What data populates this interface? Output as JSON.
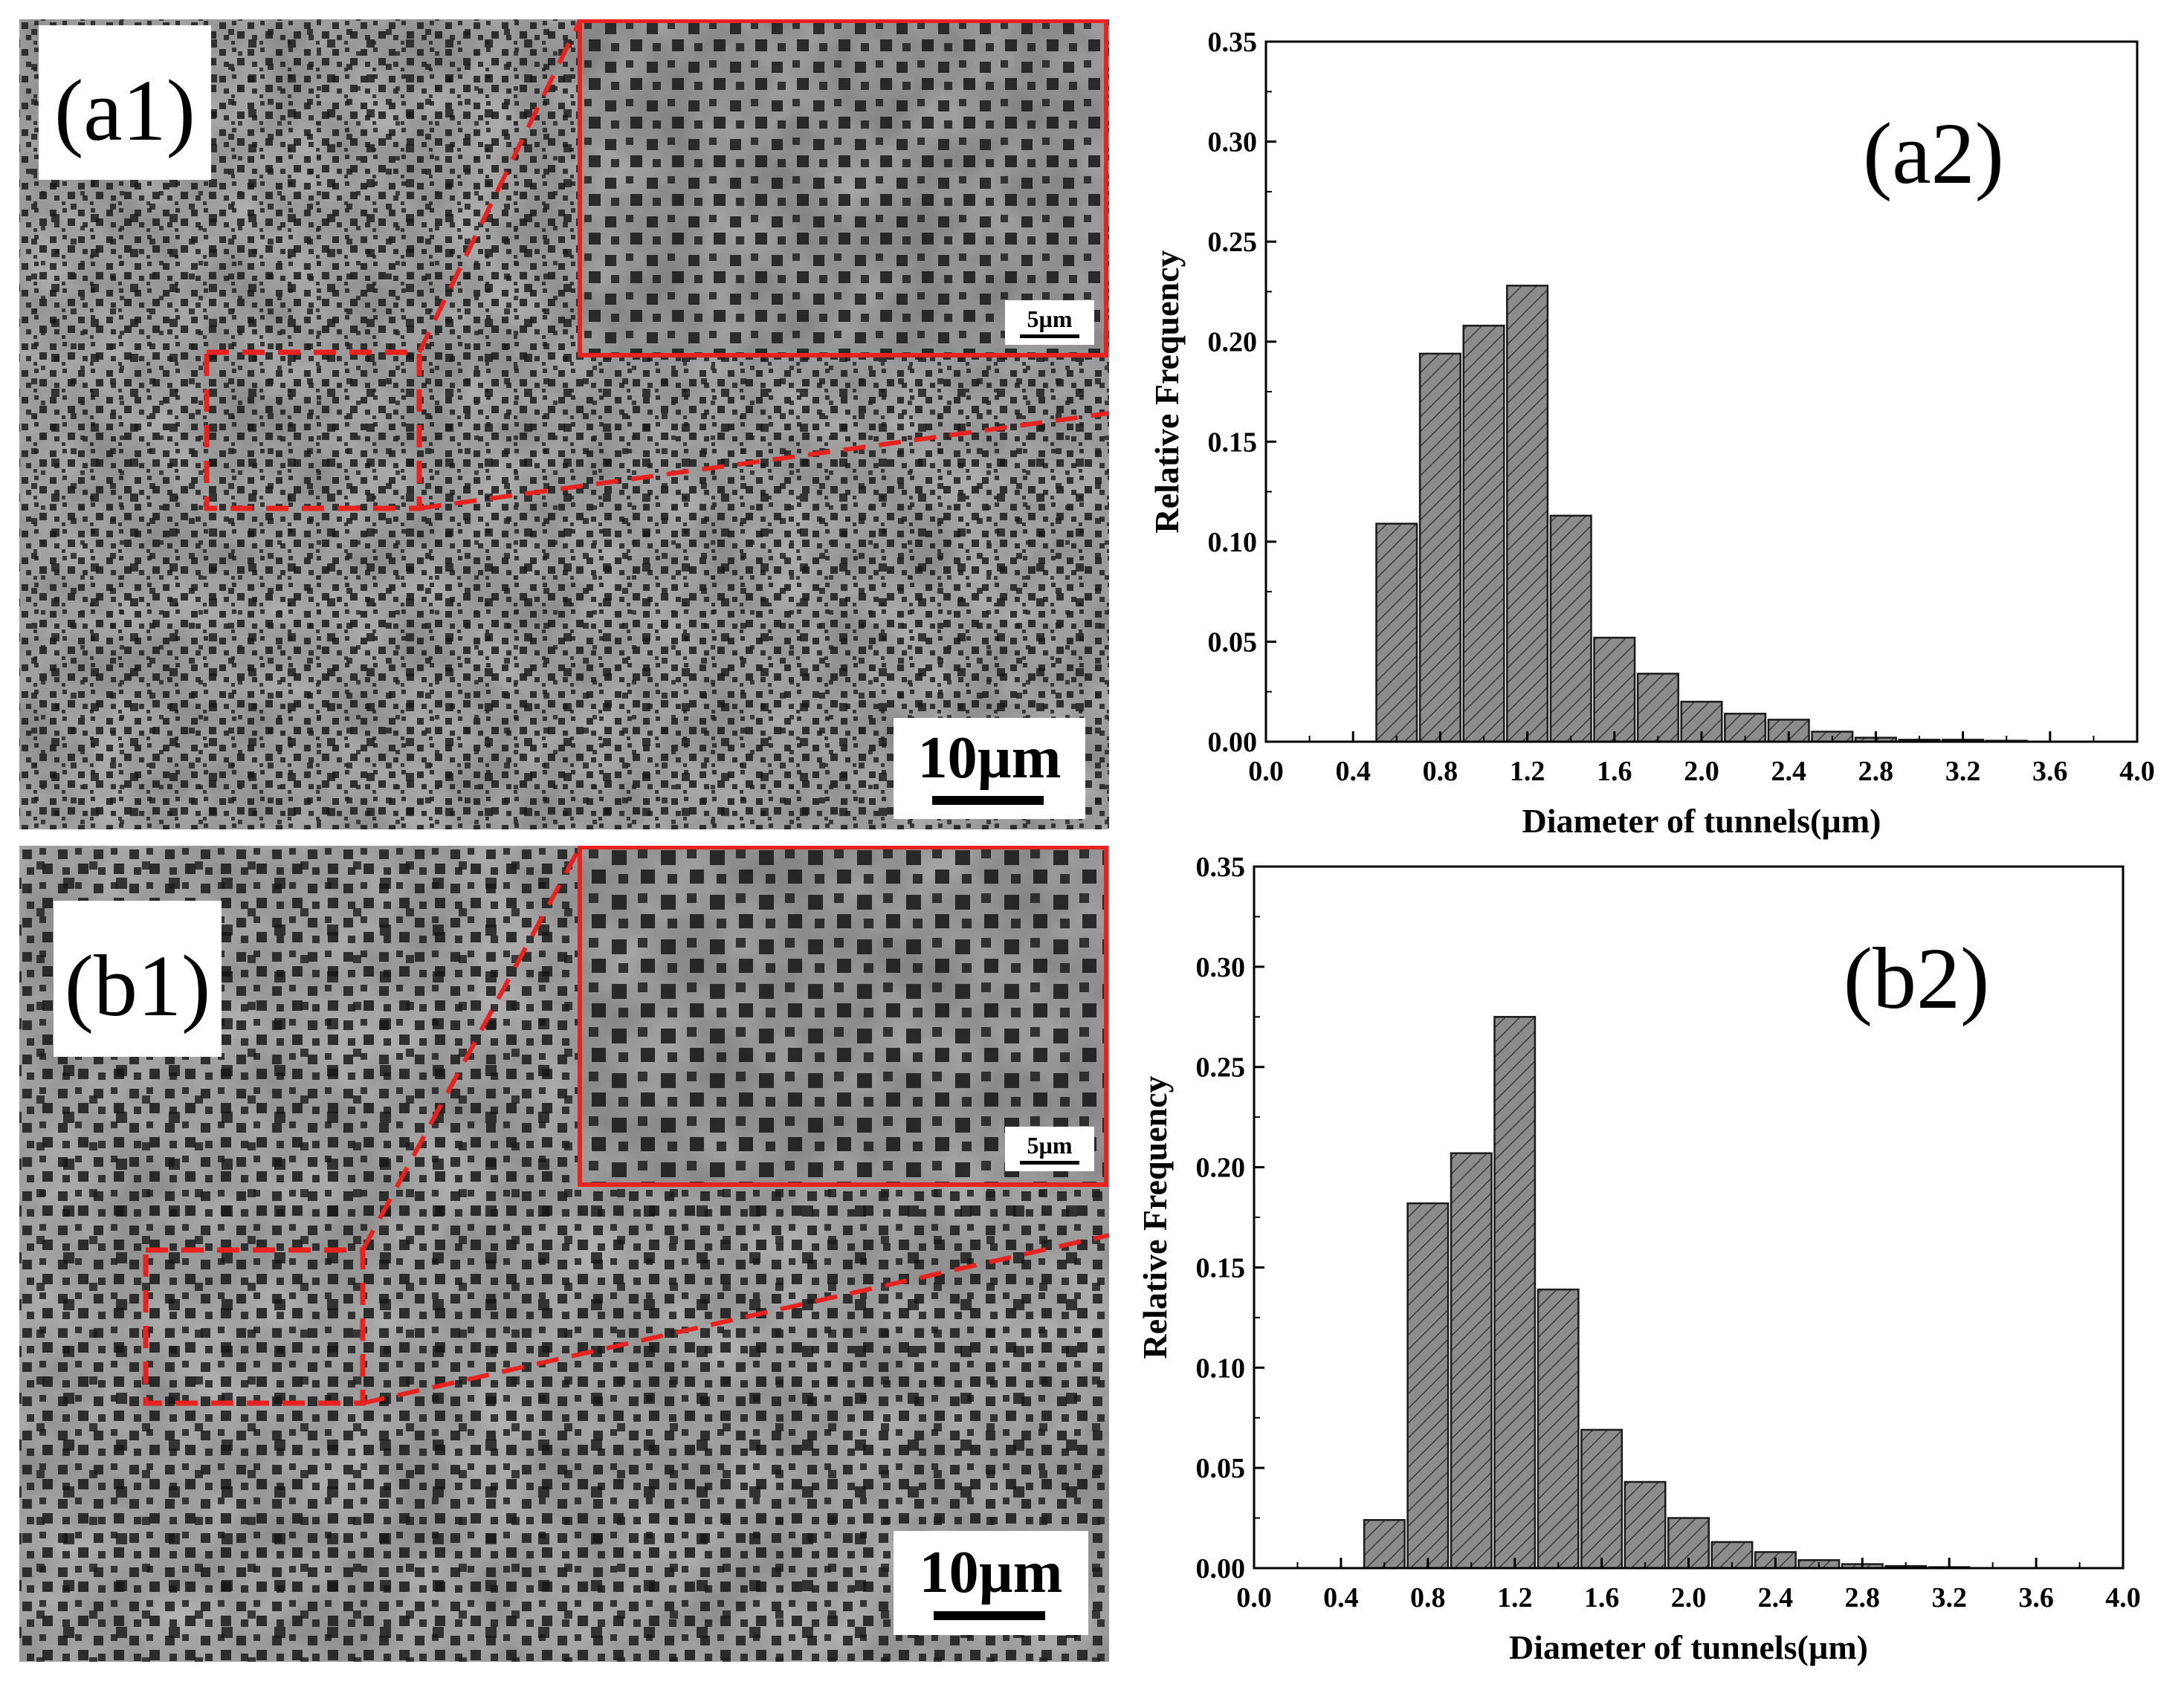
{
  "figure": {
    "a1": {
      "panel_label": "(a1)",
      "scale_bar": "10µm",
      "inset_scale_bar": "5µm"
    },
    "b1": {
      "panel_label": "(b1)",
      "scale_bar": "10µm",
      "inset_scale_bar": "5µm"
    }
  },
  "colors": {
    "bar_fill": "#8c8c8c",
    "hatch": "#3a3a3a",
    "highlight": "#e8221f",
    "sem_base": "#8e8e8e"
  },
  "chart_data": [
    {
      "id": "a2",
      "type": "bar",
      "panel_label": "(a2)",
      "xlabel": "Diameter of tunnels(µm)",
      "ylabel": "Relative Frequency",
      "xlim": [
        0.0,
        4.0
      ],
      "ylim": [
        0.0,
        0.35
      ],
      "xticks": [
        "0.0",
        "0.4",
        "0.8",
        "1.2",
        "1.6",
        "2.0",
        "2.4",
        "2.8",
        "3.2",
        "3.6",
        "4.0"
      ],
      "yticks": [
        "0.00",
        "0.05",
        "0.10",
        "0.15",
        "0.20",
        "0.25",
        "0.30",
        "0.35"
      ],
      "bin_width": 0.2,
      "x": [
        0.6,
        0.8,
        1.0,
        1.2,
        1.4,
        1.6,
        1.8,
        2.0,
        2.2,
        2.4,
        2.6,
        2.8,
        3.0,
        3.2,
        3.4
      ],
      "values": [
        0.109,
        0.194,
        0.208,
        0.228,
        0.113,
        0.052,
        0.034,
        0.02,
        0.014,
        0.011,
        0.005,
        0.002,
        0.001,
        0.001,
        0.0005
      ],
      "grid": false,
      "hatch": "diagonal"
    },
    {
      "id": "b2",
      "type": "bar",
      "panel_label": "(b2)",
      "xlabel": "Diameter of tunnels(µm)",
      "ylabel": "Relative Frequency",
      "xlim": [
        0.0,
        4.0
      ],
      "ylim": [
        0.0,
        0.35
      ],
      "xticks": [
        "0.0",
        "0.4",
        "0.8",
        "1.2",
        "1.6",
        "2.0",
        "2.4",
        "2.8",
        "3.2",
        "3.6",
        "4.0"
      ],
      "yticks": [
        "0.00",
        "0.05",
        "0.10",
        "0.15",
        "0.20",
        "0.25",
        "0.30",
        "0.35"
      ],
      "bin_width": 0.2,
      "x": [
        0.6,
        0.8,
        1.0,
        1.2,
        1.4,
        1.6,
        1.8,
        2.0,
        2.2,
        2.4,
        2.6,
        2.8,
        3.0,
        3.2
      ],
      "values": [
        0.024,
        0.182,
        0.207,
        0.275,
        0.139,
        0.069,
        0.043,
        0.025,
        0.013,
        0.008,
        0.004,
        0.002,
        0.001,
        0.0005
      ],
      "grid": false,
      "hatch": "diagonal"
    }
  ]
}
